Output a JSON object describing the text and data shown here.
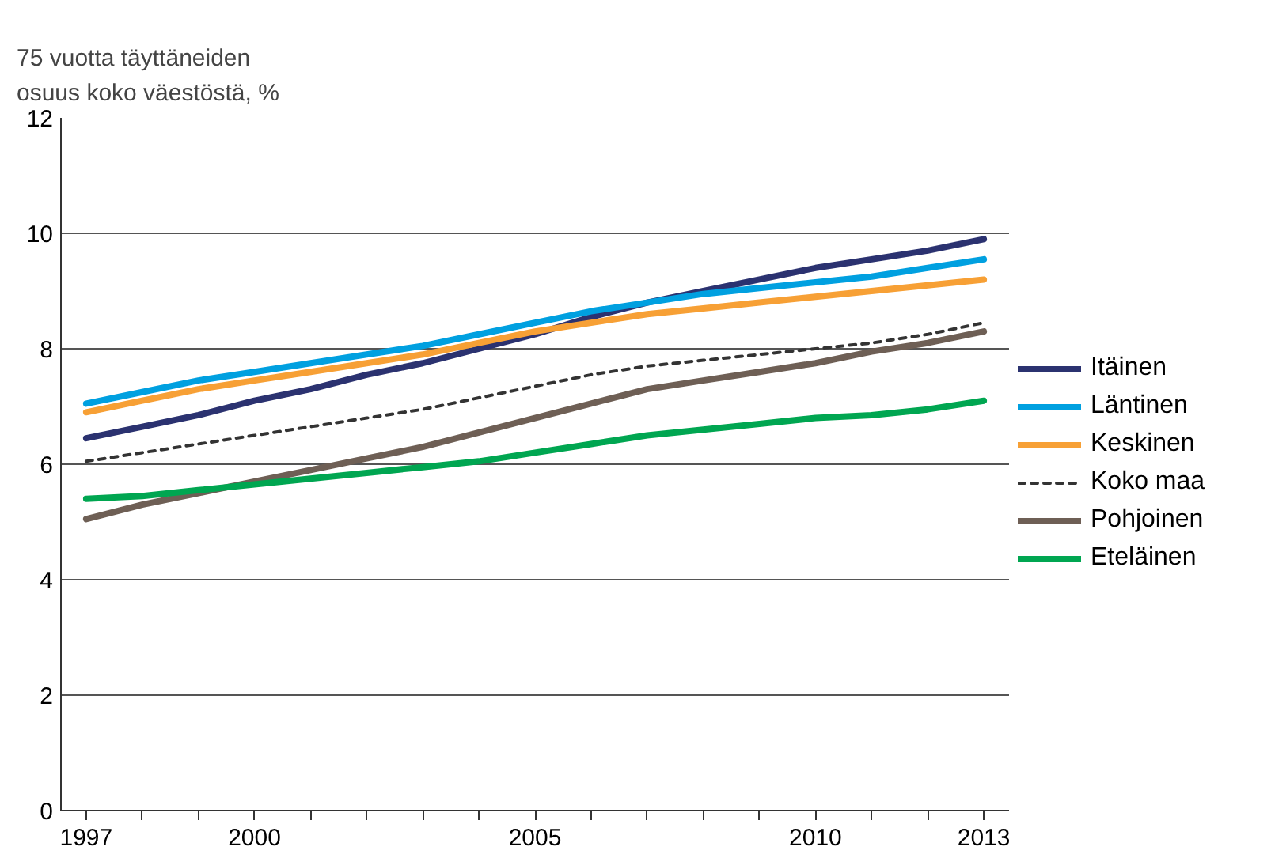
{
  "chart_data": {
    "type": "line",
    "ylabel": "75 vuotta täyttäneiden osuus koko väestöstä, %",
    "x": [
      1997,
      1998,
      1999,
      2000,
      2001,
      2002,
      2003,
      2004,
      2005,
      2006,
      2007,
      2008,
      2009,
      2010,
      2011,
      2012,
      2013
    ],
    "xlim": [
      1996.55,
      2013.45
    ],
    "ylim": [
      0,
      12
    ],
    "xticks": [
      1997,
      {
        "value": 1998,
        "label": null
      },
      {
        "value": 1999,
        "label": null
      },
      2000,
      {
        "value": 2001,
        "label": null
      },
      {
        "value": 2002,
        "label": null
      },
      {
        "value": 2003,
        "label": null
      },
      {
        "value": 2004,
        "label": null
      },
      2005,
      {
        "value": 2006,
        "label": null
      },
      {
        "value": 2007,
        "label": null
      },
      {
        "value": 2008,
        "label": null
      },
      {
        "value": 2009,
        "label": null
      },
      2010,
      {
        "value": 2011,
        "label": null
      },
      {
        "value": 2012,
        "label": null
      },
      2013
    ],
    "yticks": [
      0,
      2,
      4,
      6,
      8,
      10,
      12
    ],
    "grid": "y",
    "legend": "right",
    "line_style": "solid",
    "series": [
      {
        "name": "Itäinen",
        "color": "#2b3270",
        "values": [
          6.45,
          6.65,
          6.85,
          7.1,
          7.3,
          7.55,
          7.75,
          8.0,
          8.25,
          8.55,
          8.8,
          9.0,
          9.2,
          9.4,
          9.55,
          9.7,
          9.9
        ]
      },
      {
        "name": "Läntinen",
        "color": "#00a0e0",
        "values": [
          7.05,
          7.25,
          7.45,
          7.6,
          7.75,
          7.9,
          8.05,
          8.25,
          8.45,
          8.65,
          8.8,
          8.95,
          9.05,
          9.15,
          9.25,
          9.4,
          9.55
        ]
      },
      {
        "name": "Keskinen",
        "color": "#f7a035",
        "values": [
          6.9,
          7.1,
          7.3,
          7.45,
          7.6,
          7.75,
          7.9,
          8.1,
          8.3,
          8.45,
          8.6,
          8.7,
          8.8,
          8.9,
          9.0,
          9.1,
          9.2
        ]
      },
      {
        "name": "Koko maa",
        "color": "#333333",
        "line_style": "dashed",
        "values": [
          6.05,
          6.2,
          6.35,
          6.5,
          6.65,
          6.8,
          6.95,
          7.15,
          7.35,
          7.55,
          7.7,
          7.8,
          7.9,
          8.0,
          8.1,
          8.25,
          8.45
        ]
      },
      {
        "name": "Pohjoinen",
        "color": "#6e5f55",
        "values": [
          5.05,
          5.3,
          5.5,
          5.7,
          5.9,
          6.1,
          6.3,
          6.55,
          6.8,
          7.05,
          7.3,
          7.45,
          7.6,
          7.75,
          7.95,
          8.1,
          8.3
        ]
      },
      {
        "name": "Eteläinen",
        "color": "#00a651",
        "values": [
          5.4,
          5.45,
          5.55,
          5.65,
          5.75,
          5.85,
          5.95,
          6.05,
          6.2,
          6.35,
          6.5,
          6.6,
          6.7,
          6.8,
          6.85,
          6.95,
          7.1
        ]
      }
    ]
  }
}
